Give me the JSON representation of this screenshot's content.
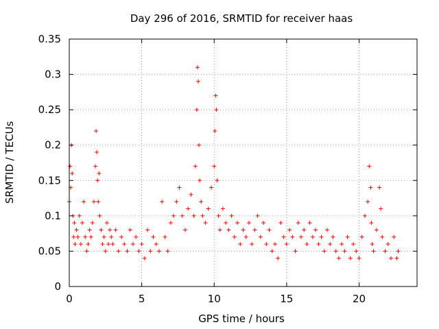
{
  "chart_data": {
    "type": "scatter",
    "title": "Day 296 of 2016, SRMTID for receiver haas",
    "xlabel": "GPS time / hours",
    "ylabel": "SRMTID / TECUs",
    "xlim": [
      0,
      24
    ],
    "ylim": [
      0,
      0.35
    ],
    "xticks": [
      0,
      5,
      10,
      15,
      20
    ],
    "xtick_labels": [
      "0",
      "5",
      "10",
      "15",
      "20"
    ],
    "yticks": [
      0,
      0.05,
      0.1,
      0.15,
      0.2,
      0.25,
      0.3,
      0.35
    ],
    "ytick_labels": [
      "0",
      "0.05",
      "0.1",
      "0.15",
      "0.2",
      "0.25",
      "0.3",
      "0.35"
    ],
    "grid": true,
    "marker": "plus",
    "color": "#ff0000",
    "series": [
      {
        "name": "SRMTID",
        "x": [
          0.0,
          0.05,
          0.1,
          0.15,
          0.2,
          0.25,
          0.3,
          0.35,
          0.4,
          0.5,
          0.6,
          0.7,
          0.8,
          0.9,
          1.0,
          1.1,
          1.2,
          1.3,
          1.4,
          1.5,
          1.6,
          1.7,
          1.8,
          1.85,
          1.9,
          1.95,
          2.0,
          2.05,
          2.1,
          2.2,
          2.3,
          2.4,
          2.5,
          2.6,
          2.7,
          2.8,
          2.9,
          3.0,
          3.2,
          3.4,
          3.6,
          3.8,
          4.0,
          4.2,
          4.4,
          4.6,
          4.8,
          5.0,
          5.2,
          5.4,
          5.6,
          5.8,
          6.0,
          6.2,
          6.4,
          6.6,
          6.8,
          7.0,
          7.2,
          7.4,
          7.6,
          7.8,
          8.0,
          8.2,
          8.4,
          8.6,
          8.7,
          8.8,
          8.85,
          8.9,
          8.95,
          9.0,
          9.1,
          9.2,
          9.4,
          9.6,
          9.8,
          10.0,
          10.05,
          10.1,
          10.15,
          10.2,
          10.3,
          10.4,
          10.6,
          10.8,
          11.0,
          11.2,
          11.4,
          11.6,
          11.8,
          12.0,
          12.2,
          12.4,
          12.6,
          12.8,
          13.0,
          13.2,
          13.4,
          13.6,
          13.8,
          14.0,
          14.2,
          14.4,
          14.6,
          14.8,
          15.0,
          15.2,
          15.4,
          15.6,
          15.8,
          16.0,
          16.2,
          16.4,
          16.6,
          16.8,
          17.0,
          17.2,
          17.4,
          17.6,
          17.8,
          18.0,
          18.2,
          18.4,
          18.6,
          18.8,
          19.0,
          19.2,
          19.4,
          19.6,
          19.8,
          20.0,
          20.2,
          20.4,
          20.6,
          20.7,
          20.8,
          20.85,
          20.9,
          21.0,
          21.2,
          21.4,
          21.5,
          21.6,
          21.8,
          22.0,
          22.2,
          22.4,
          22.6,
          22.7
        ],
        "y": [
          0.12,
          0.17,
          0.14,
          0.2,
          0.16,
          0.1,
          0.07,
          0.09,
          0.06,
          0.08,
          0.07,
          0.1,
          0.06,
          0.09,
          0.12,
          0.07,
          0.05,
          0.06,
          0.08,
          0.07,
          0.09,
          0.12,
          0.17,
          0.22,
          0.19,
          0.15,
          0.12,
          0.16,
          0.1,
          0.08,
          0.06,
          0.07,
          0.05,
          0.09,
          0.06,
          0.08,
          0.07,
          0.06,
          0.08,
          0.05,
          0.07,
          0.06,
          0.05,
          0.08,
          0.06,
          0.07,
          0.05,
          0.06,
          0.04,
          0.08,
          0.05,
          0.07,
          0.06,
          0.05,
          0.12,
          0.07,
          0.05,
          0.09,
          0.1,
          0.12,
          0.14,
          0.1,
          0.08,
          0.11,
          0.13,
          0.1,
          0.17,
          0.25,
          0.31,
          0.29,
          0.2,
          0.15,
          0.12,
          0.1,
          0.09,
          0.11,
          0.14,
          0.17,
          0.22,
          0.27,
          0.25,
          0.15,
          0.1,
          0.08,
          0.11,
          0.09,
          0.08,
          0.1,
          0.07,
          0.09,
          0.06,
          0.08,
          0.07,
          0.09,
          0.06,
          0.08,
          0.1,
          0.07,
          0.09,
          0.06,
          0.08,
          0.05,
          0.06,
          0.04,
          0.09,
          0.07,
          0.06,
          0.08,
          0.07,
          0.05,
          0.09,
          0.07,
          0.08,
          0.06,
          0.09,
          0.07,
          0.08,
          0.06,
          0.07,
          0.05,
          0.08,
          0.06,
          0.07,
          0.05,
          0.04,
          0.06,
          0.05,
          0.07,
          0.04,
          0.06,
          0.05,
          0.04,
          0.07,
          0.1,
          0.12,
          0.17,
          0.14,
          0.09,
          0.06,
          0.05,
          0.08,
          0.14,
          0.11,
          0.07,
          0.05,
          0.06,
          0.04,
          0.07,
          0.04,
          0.05
        ]
      }
    ]
  }
}
